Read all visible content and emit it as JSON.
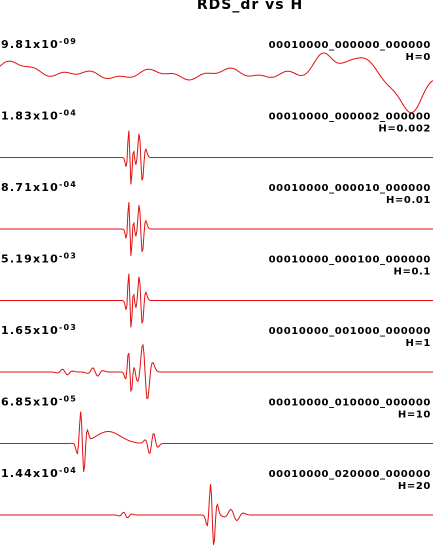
{
  "chart_data": {
    "type": "line",
    "title": "RDS_dr vs H",
    "grid": false,
    "legend": "none",
    "line_color": "#e01010",
    "panels": [
      {
        "amp_mantissa": "9.81x10",
        "amp_exponent": "-09",
        "code": "00010000_000000_000000",
        "h_label": "H=0",
        "events": [
          {
            "x": 0.02,
            "a": 0.9,
            "w": 0.06,
            "kind": "bump"
          },
          {
            "x": 0.12,
            "a": 0.3,
            "w": 0.06,
            "kind": "bump"
          },
          {
            "x": 0.35,
            "a": 0.2,
            "w": 0.08,
            "kind": "bump"
          },
          {
            "x": 0.55,
            "a": 0.4,
            "w": 0.05,
            "kind": "bump"
          },
          {
            "x": 0.75,
            "a": 2.2,
            "w": 0.03,
            "kind": "bump"
          },
          {
            "x": 0.83,
            "a": 1.4,
            "w": 0.04,
            "kind": "bump"
          },
          {
            "x": 0.95,
            "a": -3.0,
            "w": 0.04,
            "kind": "bump"
          }
        ]
      },
      {
        "amp_mantissa": "1.83x10",
        "amp_exponent": "-04",
        "code": "00010000_000002_000000",
        "h_label": "H=0.002",
        "events": [
          {
            "x": 0.3,
            "a": 4.0,
            "w": 0.006,
            "kind": "wave"
          },
          {
            "x": 0.325,
            "a": 3.5,
            "w": 0.008,
            "kind": "wave"
          }
        ]
      },
      {
        "amp_mantissa": "8.71x10",
        "amp_exponent": "-04",
        "code": "00010000_000010_000000",
        "h_label": "H=0.01",
        "events": [
          {
            "x": 0.3,
            "a": 4.0,
            "w": 0.006,
            "kind": "wave"
          },
          {
            "x": 0.325,
            "a": 3.5,
            "w": 0.008,
            "kind": "wave"
          }
        ]
      },
      {
        "amp_mantissa": "5.19x10",
        "amp_exponent": "-03",
        "code": "00010000_000100_000000",
        "h_label": "H=0.1",
        "events": [
          {
            "x": 0.3,
            "a": 4.0,
            "w": 0.006,
            "kind": "wave"
          },
          {
            "x": 0.325,
            "a": 3.5,
            "w": 0.008,
            "kind": "wave"
          }
        ]
      },
      {
        "amp_mantissa": "1.65x10",
        "amp_exponent": "-03",
        "code": "00010000_001000_000000",
        "h_label": "H=1",
        "events": [
          {
            "x": 0.15,
            "a": 0.4,
            "w": 0.012,
            "kind": "wave"
          },
          {
            "x": 0.22,
            "a": 0.6,
            "w": 0.012,
            "kind": "wave"
          },
          {
            "x": 0.3,
            "a": 3.0,
            "w": 0.007,
            "kind": "wave"
          },
          {
            "x": 0.335,
            "a": 4.0,
            "w": 0.012,
            "kind": "wave"
          }
        ]
      },
      {
        "amp_mantissa": "6.85x10",
        "amp_exponent": "-05",
        "code": "00010000_010000_000000",
        "h_label": "H=10",
        "events": [
          {
            "x": 0.19,
            "a": 4.5,
            "w": 0.008,
            "kind": "wave"
          },
          {
            "x": 0.25,
            "a": 1.0,
            "w": 0.04,
            "kind": "bump"
          },
          {
            "x": 0.35,
            "a": -1.5,
            "w": 0.01,
            "kind": "wave"
          }
        ]
      },
      {
        "amp_mantissa": "1.44x10",
        "amp_exponent": "-04",
        "code": "00010000_020000_000000",
        "h_label": "H=20",
        "events": [
          {
            "x": 0.29,
            "a": 0.4,
            "w": 0.01,
            "kind": "wave"
          },
          {
            "x": 0.49,
            "a": 4.5,
            "w": 0.008,
            "kind": "wave"
          },
          {
            "x": 0.54,
            "a": 0.8,
            "w": 0.015,
            "kind": "wave"
          }
        ]
      }
    ]
  }
}
